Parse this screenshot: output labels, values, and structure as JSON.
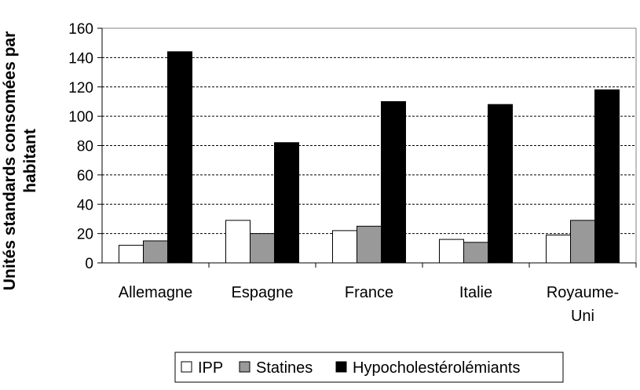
{
  "chart_data": {
    "type": "bar",
    "title": "",
    "xlabel": "",
    "ylabel_lines": [
      "Unités standards consomées par",
      "habitant"
    ],
    "ylim": [
      0,
      160
    ],
    "yticks": [
      "0",
      "20",
      "40",
      "60",
      "80",
      "100",
      "120",
      "140",
      "160"
    ],
    "grid": true,
    "legend_position": "bottom",
    "categories": [
      {
        "lines": [
          "Allemagne"
        ]
      },
      {
        "lines": [
          "Espagne"
        ]
      },
      {
        "lines": [
          "France"
        ]
      },
      {
        "lines": [
          "Italie"
        ]
      },
      {
        "lines": [
          "Royaume-",
          "Uni"
        ]
      }
    ],
    "series": [
      {
        "name": "IPP",
        "color": "#ffffff",
        "values": [
          12,
          29,
          22,
          16,
          19
        ]
      },
      {
        "name": "Statines",
        "color": "#999999",
        "values": [
          15,
          20,
          25,
          14,
          29
        ]
      },
      {
        "name": "Hypocholestérolémiants",
        "color": "#000000",
        "values": [
          144,
          82,
          110,
          108,
          118
        ]
      }
    ]
  }
}
